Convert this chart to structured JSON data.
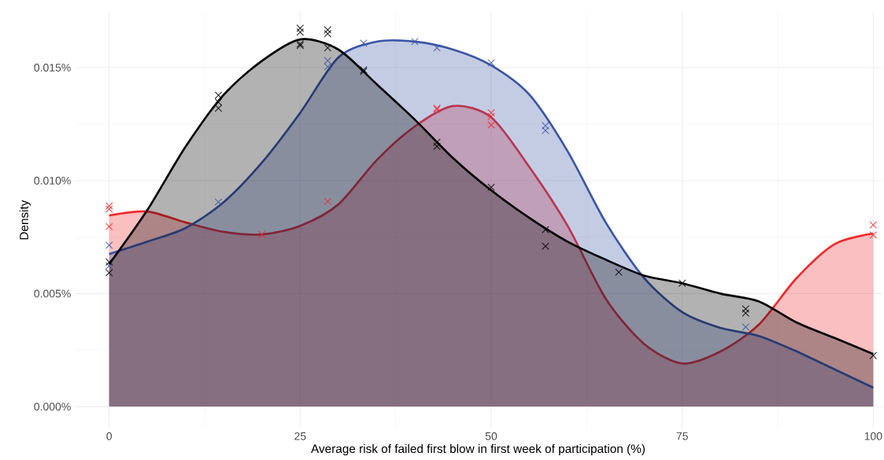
{
  "chart_data": {
    "type": "area",
    "xlabel": "Average risk of failed first blow in first week of participation (%)",
    "ylabel": "Density",
    "xlim": [
      -4.5,
      101.1
    ],
    "ylim": [
      -0.00097,
      0.01747
    ],
    "xticks": [
      0,
      25,
      50,
      75,
      100
    ],
    "yticks": [
      {
        "value": 0,
        "label": "0.000%"
      },
      {
        "value": 0.005,
        "label": "0.005%"
      },
      {
        "value": 0.01,
        "label": "0.010%"
      },
      {
        "value": 0.015,
        "label": "0.015%"
      }
    ],
    "grid": true,
    "series": [
      {
        "marker": "none",
        "color": "#ee2a2e",
        "x": [
          0,
          5,
          10,
          15,
          20,
          25,
          30,
          35,
          40,
          45,
          50,
          55,
          60,
          65,
          70,
          75,
          80,
          85,
          90,
          95,
          100
        ],
        "values": [
          0.00846,
          0.00863,
          0.00815,
          0.00773,
          0.00762,
          0.008,
          0.00895,
          0.0109,
          0.0124,
          0.0133,
          0.0128,
          0.0106,
          0.008,
          0.00477,
          0.00278,
          0.00191,
          0.00244,
          0.00362,
          0.0057,
          0.0072,
          0.00766
        ]
      },
      {
        "marker": "none",
        "color": "#3a55a5",
        "x": [
          0,
          5,
          10,
          15,
          20,
          25,
          30,
          35,
          40,
          45,
          50,
          55,
          60,
          65,
          70,
          75,
          80,
          85,
          90,
          95,
          100
        ],
        "values": [
          0.00675,
          0.0073,
          0.0079,
          0.00905,
          0.0108,
          0.013,
          0.01545,
          0.01615,
          0.01615,
          0.0158,
          0.0151,
          0.0138,
          0.0113,
          0.00814,
          0.0057,
          0.00418,
          0.00348,
          0.00313,
          0.00244,
          0.00164,
          0.00084
        ]
      },
      {
        "marker": "none",
        "color": "#000000",
        "x": [
          0,
          5,
          10,
          15,
          20,
          25,
          30,
          35,
          40,
          45,
          50,
          55,
          60,
          65,
          70,
          75,
          80,
          85,
          90,
          95,
          100
        ],
        "values": [
          0.0063,
          0.0087,
          0.0115,
          0.0138,
          0.0153,
          0.01625,
          0.0158,
          0.01427,
          0.0127,
          0.011,
          0.00957,
          0.00835,
          0.0073,
          0.0065,
          0.0058,
          0.00546,
          0.005,
          0.00466,
          0.00372,
          0.00303,
          0.00233
        ]
      },
      {
        "type": "scatter",
        "marker": "cross",
        "color": "#ee2a2e",
        "x": [
          0,
          0,
          0,
          20,
          28.6,
          42.9,
          42.9,
          50,
          50,
          50,
          100,
          100
        ],
        "values": [
          0.00888,
          0.00874,
          0.00797,
          0.00762,
          0.00908,
          0.0132,
          0.01316,
          0.013,
          0.01284,
          0.01246,
          0.00804,
          0.00759
        ]
      },
      {
        "type": "scatter",
        "marker": "cross",
        "color": "#3a55a5",
        "x": [
          0,
          0,
          14.3,
          28.6,
          28.6,
          33.3,
          40,
          42.9,
          50,
          57.1,
          57.1,
          83.3
        ],
        "values": [
          0.00714,
          0.00623,
          0.00905,
          0.01531,
          0.01504,
          0.01608,
          0.01615,
          0.01587,
          0.01521,
          0.01243,
          0.01222,
          0.00352
        ]
      },
      {
        "type": "scatter",
        "marker": "cross",
        "color": "#000000",
        "x": [
          0,
          0,
          14.3,
          14.3,
          14.3,
          25,
          25,
          25,
          25,
          28.6,
          28.6,
          28.6,
          33.3,
          33.3,
          42.9,
          42.9,
          50,
          57.1,
          57.1,
          66.7,
          75,
          83.3,
          83.3,
          100
        ],
        "values": [
          0.0064,
          0.00592,
          0.01378,
          0.01347,
          0.0132,
          0.01674,
          0.01657,
          0.01605,
          0.01598,
          0.01667,
          0.0165,
          0.01587,
          0.0149,
          0.01483,
          0.0117,
          0.01152,
          0.00971,
          0.00783,
          0.0071,
          0.00595,
          0.00546,
          0.00432,
          0.00414,
          0.00226
        ]
      }
    ]
  }
}
